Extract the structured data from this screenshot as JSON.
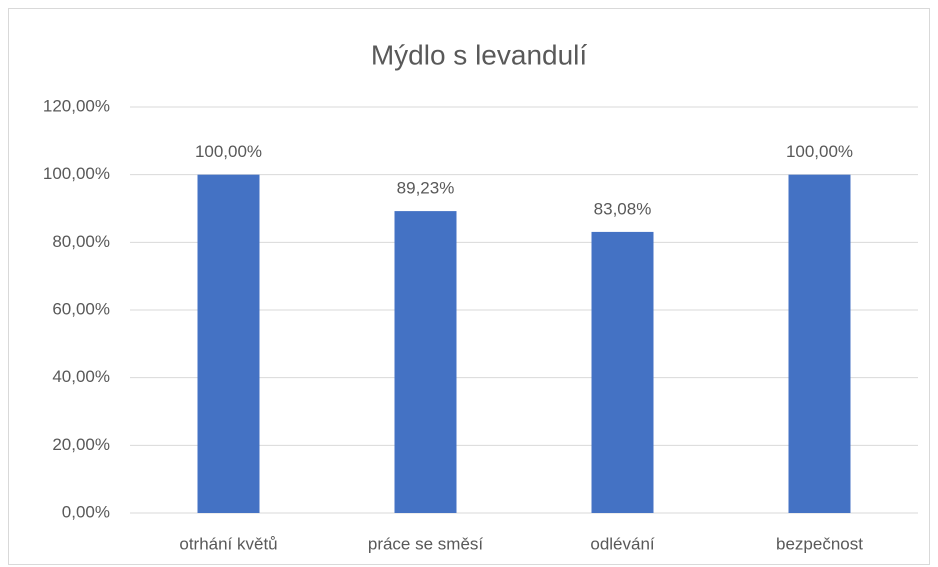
{
  "chart_data": {
    "type": "bar",
    "title": "Mýdlo s levandulí",
    "categories": [
      "otrhání květů",
      "práce se směsí",
      "odlévání",
      "bezpečnost"
    ],
    "values": [
      100,
      89.23,
      83.08,
      100
    ],
    "value_labels": [
      "100,00%",
      "89,23%",
      "83,08%",
      "100,00%"
    ],
    "color": "#4472c4",
    "ylim": [
      0,
      120
    ],
    "yticks": [
      {
        "value": 0,
        "label": "0,00%"
      },
      {
        "value": 20,
        "label": "20,00%"
      },
      {
        "value": 40,
        "label": "40,00%"
      },
      {
        "value": 60,
        "label": "60,00%"
      },
      {
        "value": 80,
        "label": "80,00%"
      },
      {
        "value": 100,
        "label": "100,00%"
      },
      {
        "value": 120,
        "label": "120,00%"
      }
    ],
    "grid": true
  }
}
